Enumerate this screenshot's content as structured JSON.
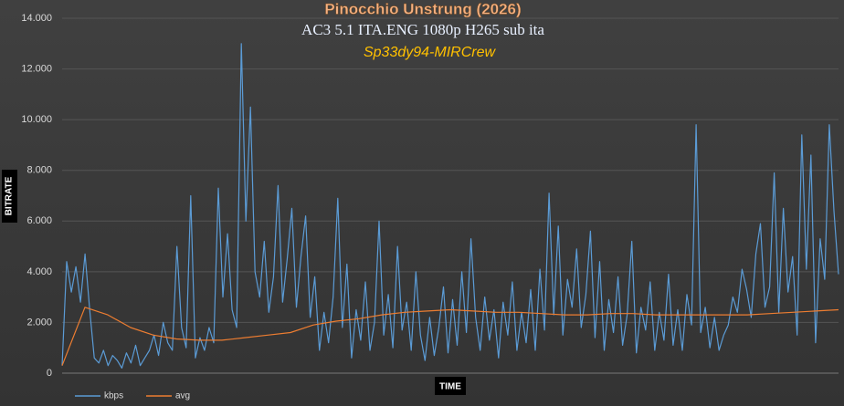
{
  "chart_data": {
    "type": "line",
    "title": "Pinocchio Unstrung (2026)",
    "subtitle": "AC3 5.1 ITA.ENG 1080p H265 sub ita",
    "author": "Sp33dy94-MIRCrew",
    "y_label": "BITRATE",
    "x_label": "TIME",
    "ylim": [
      0,
      14000
    ],
    "yticks": [
      0,
      {
        "value": 2000,
        "label": "2.000"
      },
      {
        "value": 4000,
        "label": "4.000"
      },
      {
        "value": 6000,
        "label": "6.000"
      },
      {
        "value": 8000,
        "label": "8.000"
      },
      {
        "value": 10000,
        "label": "10.000"
      },
      {
        "value": 12000,
        "label": "12.000"
      },
      {
        "value": 14000,
        "label": "14.000"
      }
    ],
    "grid": true,
    "legend": "bottom-left",
    "series": [
      {
        "name": "kbps",
        "color": "#5b9bd5",
        "values": [
          300,
          4400,
          3200,
          4200,
          2800,
          4700,
          2500,
          600,
          400,
          900,
          300,
          700,
          500,
          200,
          800,
          400,
          1100,
          300,
          600,
          900,
          1500,
          700,
          2000,
          1200,
          900,
          5000,
          1800,
          1000,
          7000,
          600,
          1400,
          900,
          1800,
          1200,
          7300,
          3000,
          5500,
          2500,
          1800,
          13000,
          6000,
          10500,
          4000,
          3000,
          5200,
          2400,
          3800,
          7400,
          2800,
          4500,
          6500,
          2600,
          4600,
          6200,
          2200,
          3800,
          900,
          2400,
          1200,
          3000,
          6900,
          1800,
          4300,
          600,
          2500,
          1300,
          3600,
          900,
          2000,
          6000,
          1500,
          3100,
          1000,
          5000,
          1700,
          2800,
          900,
          4000,
          1500,
          500,
          2200,
          700,
          1800,
          3400,
          800,
          2900,
          1100,
          4000,
          1600,
          5300,
          2200,
          900,
          3000,
          1300,
          2500,
          600,
          2800,
          1500,
          3600,
          900,
          2400,
          1200,
          3300,
          900,
          4100,
          1700,
          7100,
          2300,
          5800,
          1500,
          3700,
          2600,
          4900,
          1800,
          3100,
          5600,
          1400,
          4400,
          900,
          2900,
          1600,
          3800,
          1100,
          2300,
          5200,
          800,
          2600,
          1700,
          3600,
          900,
          2400,
          1300,
          3900,
          1100,
          2500,
          900,
          3100,
          1900,
          9800,
          1600,
          2600,
          1000,
          2200,
          900,
          1500,
          1900,
          3000,
          2400,
          4100,
          3300,
          2200,
          4700,
          5900,
          2600,
          3400,
          7900,
          2400,
          6500,
          3200,
          4600,
          1500,
          9400,
          4100,
          8600,
          1200,
          5300,
          3700,
          9800,
          6400,
          3900
        ]
      },
      {
        "name": "avg",
        "color": "#ed7d31",
        "values": [
          300,
          2600,
          2300,
          1800,
          1500,
          1350,
          1300,
          1300,
          1400,
          1500,
          1600,
          1900,
          2050,
          2150,
          2300,
          2400,
          2450,
          2500,
          2450,
          2400,
          2400,
          2350,
          2300,
          2300,
          2350,
          2350,
          2300,
          2300,
          2300,
          2300,
          2300,
          2350,
          2400,
          2450,
          2500
        ]
      }
    ]
  }
}
